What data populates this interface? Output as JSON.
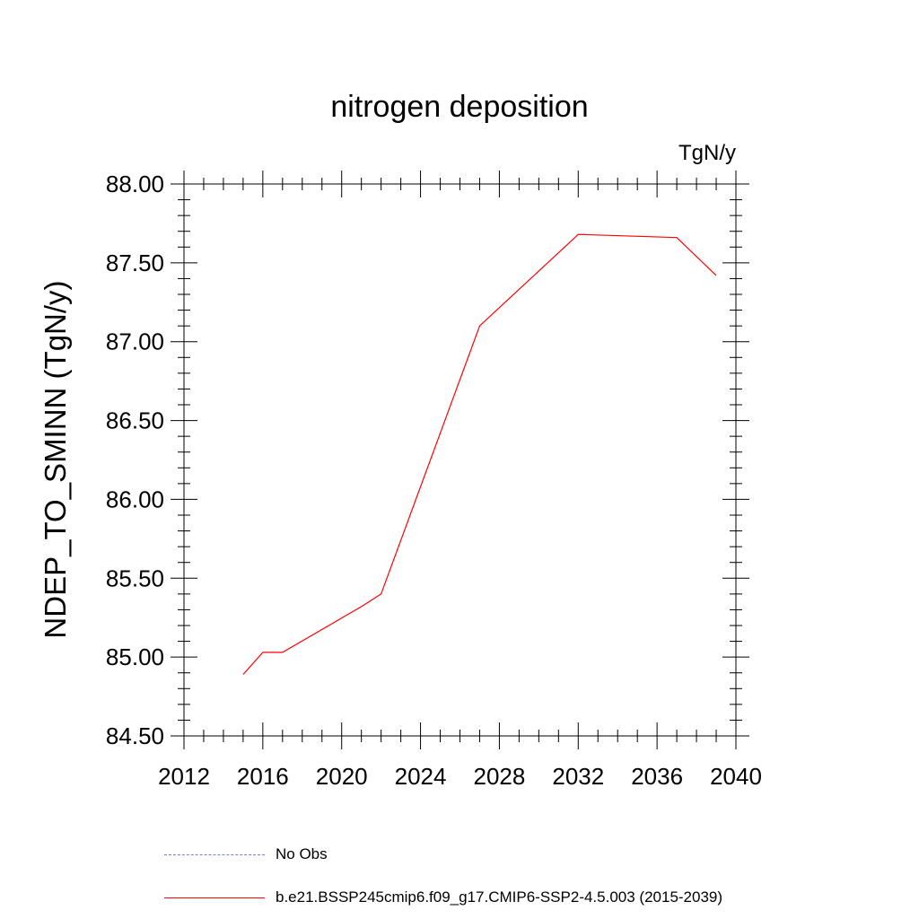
{
  "chart_data": {
    "type": "line",
    "title": "nitrogen deposition",
    "units_label": "TgN/y",
    "ylabel": "NDEP_TO_SMINN  (TgN/y)",
    "xlabel": "",
    "xlim": [
      2012,
      2040
    ],
    "ylim": [
      84.5,
      88.0
    ],
    "x_ticks": [
      2012,
      2016,
      2020,
      2024,
      2028,
      2032,
      2036,
      2040
    ],
    "x_tick_labels": [
      "2012",
      "2016",
      "2020",
      "2024",
      "2028",
      "2032",
      "2036",
      "2040"
    ],
    "y_ticks": [
      84.5,
      85.0,
      85.5,
      86.0,
      86.5,
      87.0,
      87.5,
      88.0
    ],
    "y_tick_labels": [
      "84.50",
      "85.00",
      "85.50",
      "86.00",
      "86.50",
      "87.00",
      "87.50",
      "88.00"
    ],
    "grid": false,
    "legend_position": "bottom",
    "series": [
      {
        "name": "b.e21.BSSP245cmip6.f09_g17.CMIP6-SSP2-4.5.003 (2015-2039)",
        "color": "#ff0000",
        "style": "solid",
        "x": [
          2015,
          2016,
          2017,
          2021,
          2022,
          2027,
          2032,
          2037,
          2039
        ],
        "values": [
          84.89,
          85.03,
          85.03,
          85.32,
          85.4,
          87.1,
          87.68,
          87.66,
          87.42
        ]
      }
    ],
    "legend": [
      {
        "label": "No Obs",
        "color": "#7b7bd6",
        "style": "dashed"
      },
      {
        "label": "b.e21.BSSP245cmip6.f09_g17.CMIP6-SSP2-4.5.003 (2015-2039)",
        "color": "#ff0000",
        "style": "solid"
      }
    ]
  }
}
